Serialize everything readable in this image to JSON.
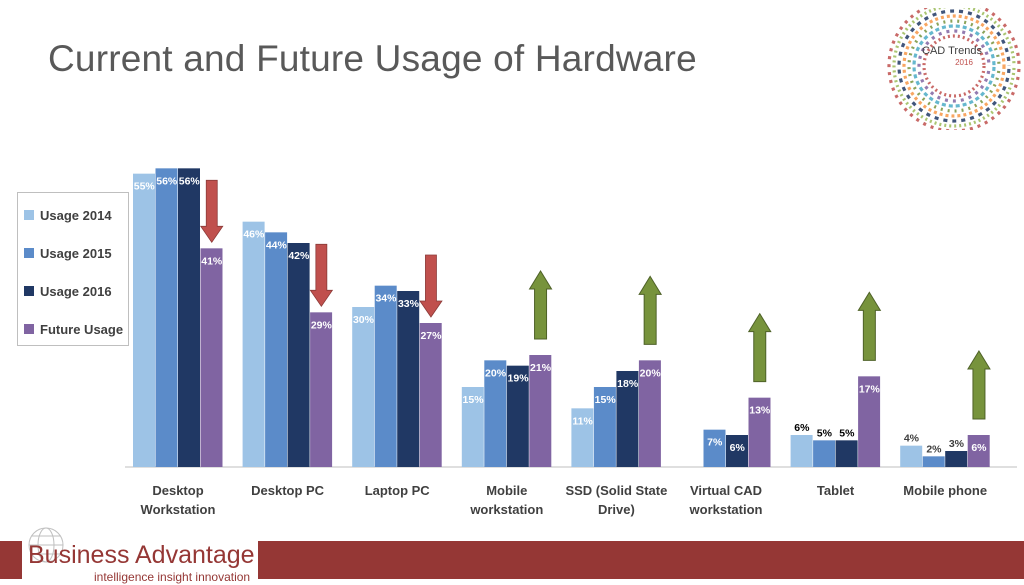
{
  "slide": {
    "title": "Current and Future Usage of Hardware"
  },
  "badge": {
    "line1": "CAD Trends",
    "line2": "2016"
  },
  "logo": {
    "name": "Business Advantage",
    "tagline": "intelligence insight innovation"
  },
  "colors": {
    "usage_2014": "#9dc3e6",
    "usage_2015": "#5b8bc9",
    "usage_2016": "#203864",
    "future": "#8064a2",
    "arrow_down": "#c0504d",
    "arrow_up": "#77933c",
    "footer": "#953735"
  },
  "chart_data": {
    "type": "bar",
    "categories": [
      [
        "Desktop",
        "Workstation"
      ],
      [
        "Desktop PC"
      ],
      [
        "Laptop PC"
      ],
      [
        "Mobile",
        "workstation"
      ],
      [
        "SSD (Solid State",
        "Drive)"
      ],
      [
        "Virtual CAD",
        "workstation"
      ],
      [
        "Tablet"
      ],
      [
        "Mobile phone"
      ]
    ],
    "series": [
      {
        "name": "Usage 2014",
        "values": [
          55,
          46,
          30,
          15,
          11,
          null,
          6,
          4
        ],
        "labels": [
          "55%",
          "46%",
          "30%",
          "15%",
          "11%",
          "",
          "6%",
          "4%"
        ]
      },
      {
        "name": "Usage 2015",
        "values": [
          56,
          44,
          34,
          20,
          15,
          7,
          5,
          2
        ],
        "labels": [
          "56%",
          "44%",
          "34%",
          "20%",
          "15%",
          "7%",
          "5%",
          "2%"
        ]
      },
      {
        "name": "Usage 2016",
        "values": [
          56,
          42,
          33,
          19,
          18,
          6,
          5,
          3
        ],
        "labels": [
          "56%",
          "42%",
          "33%",
          "19%",
          "18%",
          "6%",
          "5%",
          "3%"
        ]
      },
      {
        "name": "Future Usage",
        "values": [
          41,
          29,
          27,
          21,
          20,
          13,
          17,
          6
        ],
        "labels": [
          "41%",
          "29%",
          "27%",
          "21%",
          "20%",
          "13%",
          "17%",
          "6%"
        ]
      }
    ],
    "trend_arrows": [
      "down",
      "down",
      "down",
      "up",
      "up",
      "up",
      "up",
      "up"
    ],
    "ylim": [
      0,
      60
    ],
    "legend_position": "left",
    "grid": false
  }
}
